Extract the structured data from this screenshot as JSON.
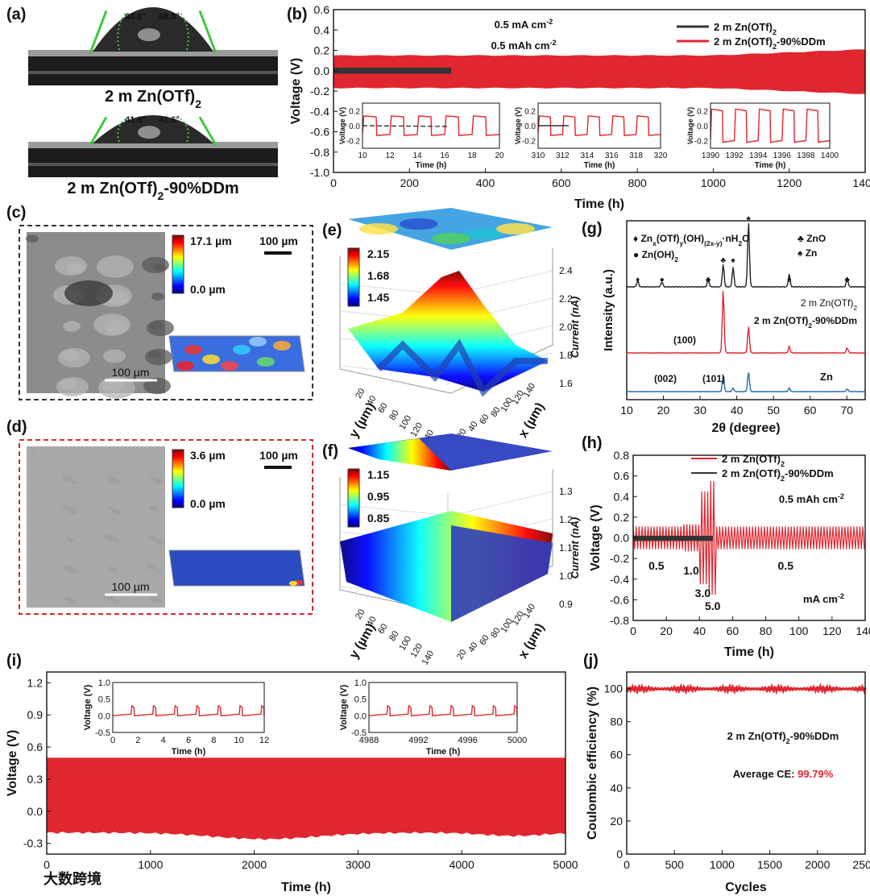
{
  "panels": {
    "a": {
      "label": "(a)",
      "angle_top": "68.8°",
      "angle_bottom": "41.6°",
      "caption_top": "2 m Zn(OTf)",
      "caption_top_sub": "2",
      "caption_bottom": "2 m Zn(OTf)",
      "caption_bottom_sub": "2",
      "caption_bottom_suffix": "-90%DDm"
    },
    "c": {
      "label": "(c)",
      "scale_label": "100 µm",
      "bar_label": "100 µm",
      "cbar_max": "17.1 µm",
      "cbar_min": "0.0 µm"
    },
    "d": {
      "label": "(d)",
      "scale_label": "100 µm",
      "bar_label": "100 µm",
      "cbar_max": "3.6 µm",
      "cbar_min": "0.0 µm"
    },
    "e": {
      "label": "(e)",
      "cbar": [
        "2.15",
        "1.68",
        "1.45"
      ],
      "zticks": [
        "2.4",
        "2.2",
        "2.0",
        "1.8",
        "1.6"
      ],
      "zlabel": "Current (nA)",
      "xticks": [
        "20",
        "40",
        "60",
        "80",
        "100",
        "120",
        "140"
      ],
      "yticks": [
        "20",
        "40",
        "60",
        "80",
        "100",
        "120",
        "140"
      ],
      "xlabel": "x (µm)",
      "ylabel": "y (µm)"
    },
    "f": {
      "label": "(f)",
      "cbar": [
        "1.15",
        "0.95",
        "0.85"
      ],
      "zticks": [
        "1.3",
        "1.2",
        "1.1",
        "1.0",
        "0.9"
      ],
      "zlabel": "Current (nA)",
      "xticks": [
        "20",
        "40",
        "60",
        "80",
        "100",
        "120",
        "140"
      ],
      "yticks": [
        "20",
        "40",
        "60",
        "80",
        "100",
        "120",
        "140"
      ],
      "xlabel": "x (µm)",
      "ylabel": "y (µm)"
    }
  },
  "chart_data": [
    {
      "id": "b",
      "label": "(b)",
      "type": "line",
      "xlabel": "Time (h)",
      "ylabel": "Voltage (V)",
      "xlim": [
        0,
        1400
      ],
      "ylim": [
        -1.0,
        0.6
      ],
      "xticks": [
        0,
        200,
        400,
        600,
        800,
        1000,
        1200,
        1400
      ],
      "yticks": [
        -1.0,
        -0.8,
        -0.6,
        -0.4,
        -0.2,
        0.0,
        0.2,
        0.4,
        0.6
      ],
      "annotations": [
        "0.5 mA cm",
        "0.5 mAh cm"
      ],
      "series": [
        {
          "name": "2 m Zn(OTf)",
          "sub": "2",
          "suffix": "",
          "color": "#333333",
          "x_end": 310,
          "amplitude": 0.03
        },
        {
          "name": "2 m Zn(OTf)",
          "sub": "2",
          "suffix": "-90%DDm",
          "color": "#e0262f",
          "x_end": 1400,
          "amplitude": 0.14
        }
      ],
      "insets": [
        {
          "xlabel": "Time (h)",
          "ylabel": "Voltage (V)",
          "xlim": [
            10,
            20
          ],
          "xticks": [
            10,
            12,
            14,
            16,
            18,
            20
          ],
          "yticks": [
            0.2,
            0.0,
            -0.2
          ]
        },
        {
          "xlabel": "Time (h)",
          "ylabel": "Voltage (V)",
          "xlim": [
            310,
            320
          ],
          "xticks": [
            310,
            312,
            314,
            316,
            318,
            320
          ],
          "yticks": [
            0.2,
            0.0,
            -0.2
          ]
        },
        {
          "xlabel": "Time (h)",
          "ylabel": "Voltage (V)",
          "xlim": [
            1390,
            1400
          ],
          "xticks": [
            1390,
            1392,
            1394,
            1396,
            1398,
            1400
          ],
          "yticks": [
            0.2,
            0.0,
            -0.2
          ]
        }
      ]
    },
    {
      "id": "g",
      "label": "(g)",
      "type": "line",
      "xlabel": "2θ (degree)",
      "ylabel": "Intensity (a.u.)",
      "xlim": [
        10,
        75
      ],
      "xticks": [
        10,
        20,
        30,
        40,
        50,
        60,
        70
      ],
      "legend": [
        "Zn",
        "(OTf)",
        "(OH)",
        "·nH",
        "O",
        "Zn(OH)",
        "ZnO",
        "Zn"
      ],
      "peak_labels": [
        "(002)",
        "(100)",
        "(101)"
      ],
      "series": [
        {
          "name": "2 m Zn(OTf)",
          "sub": "2",
          "suffix": "",
          "color": "#222222",
          "peaks": [
            [
              13.0,
              0.1
            ],
            [
              19.6,
              0.08
            ],
            [
              32.2,
              0.12
            ],
            [
              36.3,
              0.35
            ],
            [
              39.0,
              0.3
            ],
            [
              43.2,
              1.0
            ],
            [
              54.3,
              0.2
            ],
            [
              70.1,
              0.14
            ]
          ]
        },
        {
          "name": "2 m Zn(OTf)",
          "sub": "2",
          "suffix": "-90%DDm",
          "color": "#e0262f",
          "peaks": [
            [
              36.3,
              1.0
            ],
            [
              43.2,
              0.42
            ],
            [
              54.3,
              0.1
            ],
            [
              70.1,
              0.08
            ]
          ]
        },
        {
          "name": "Zn",
          "sub": "",
          "suffix": "",
          "color": "#2468b0",
          "peaks": [
            [
              36.3,
              0.45
            ],
            [
              39.0,
              0.1
            ],
            [
              43.2,
              0.55
            ],
            [
              54.3,
              0.1
            ],
            [
              70.1,
              0.08
            ]
          ]
        }
      ]
    },
    {
      "id": "h",
      "label": "(h)",
      "type": "line",
      "xlabel": "Time (h)",
      "ylabel": "Voltage (V)",
      "xlim": [
        0,
        140
      ],
      "ylim": [
        -0.8,
        0.8
      ],
      "xticks": [
        0,
        20,
        40,
        60,
        80,
        100,
        120,
        140
      ],
      "yticks": [
        -0.8,
        -0.6,
        -0.4,
        -0.2,
        0.0,
        0.2,
        0.4,
        0.6,
        0.8
      ],
      "annotations": [
        "0.5 mAh cm",
        "mA cm"
      ],
      "rate_labels": [
        "0.5",
        "1.0",
        "3.0",
        "5.0",
        "0.5"
      ],
      "series": [
        {
          "name": "2 m Zn(OTf)",
          "sub": "2",
          "suffix": "",
          "color": "#e0262f"
        },
        {
          "name": "2 m Zn(OTf)",
          "sub": "2",
          "suffix": "-90%DDm",
          "color": "#333333"
        }
      ]
    },
    {
      "id": "i",
      "label": "(i)",
      "type": "line",
      "xlabel": "Time (h)",
      "ylabel": "Voltage (V)",
      "xlim": [
        0,
        5000
      ],
      "ylim": [
        -0.4,
        1.3
      ],
      "xticks": [
        0,
        1000,
        2000,
        3000,
        4000,
        5000
      ],
      "yticks": [
        -0.3,
        0.0,
        0.3,
        0.6,
        0.9,
        1.2
      ],
      "band": {
        "top": 0.5,
        "bottom": -0.2
      },
      "insets": [
        {
          "xlabel": "Time (h)",
          "ylabel": "Voltage (V)",
          "xlim": [
            0,
            12
          ],
          "xticks": [
            0,
            2,
            4,
            6,
            8,
            10,
            12
          ],
          "yticks": [
            1.0,
            0.5,
            0.0,
            -0.5
          ]
        },
        {
          "xlabel": "Time (h)",
          "ylabel": "Voltage (V)",
          "xlim": [
            4988,
            5000
          ],
          "xticks": [
            4988,
            4992,
            4996,
            5000
          ],
          "yticks": [
            1.0,
            0.5,
            0.0,
            -0.5
          ]
        }
      ]
    },
    {
      "id": "j",
      "label": "(j)",
      "type": "scatter",
      "xlabel": "Cycles",
      "ylabel": "Coulombic efficiency (%)",
      "xlim": [
        0,
        2500
      ],
      "ylim": [
        0,
        110
      ],
      "xticks": [
        0,
        500,
        1000,
        1500,
        2000,
        2500
      ],
      "yticks": [
        0,
        20,
        40,
        60,
        80,
        100
      ],
      "series_label": "2 m Zn(OTf)",
      "series_sub": "2",
      "series_suffix": "-90%DDm",
      "average_label": "Average CE:",
      "average_value": "99.79%",
      "ce_mean": 99.79
    }
  ],
  "watermark": "大数跨境"
}
